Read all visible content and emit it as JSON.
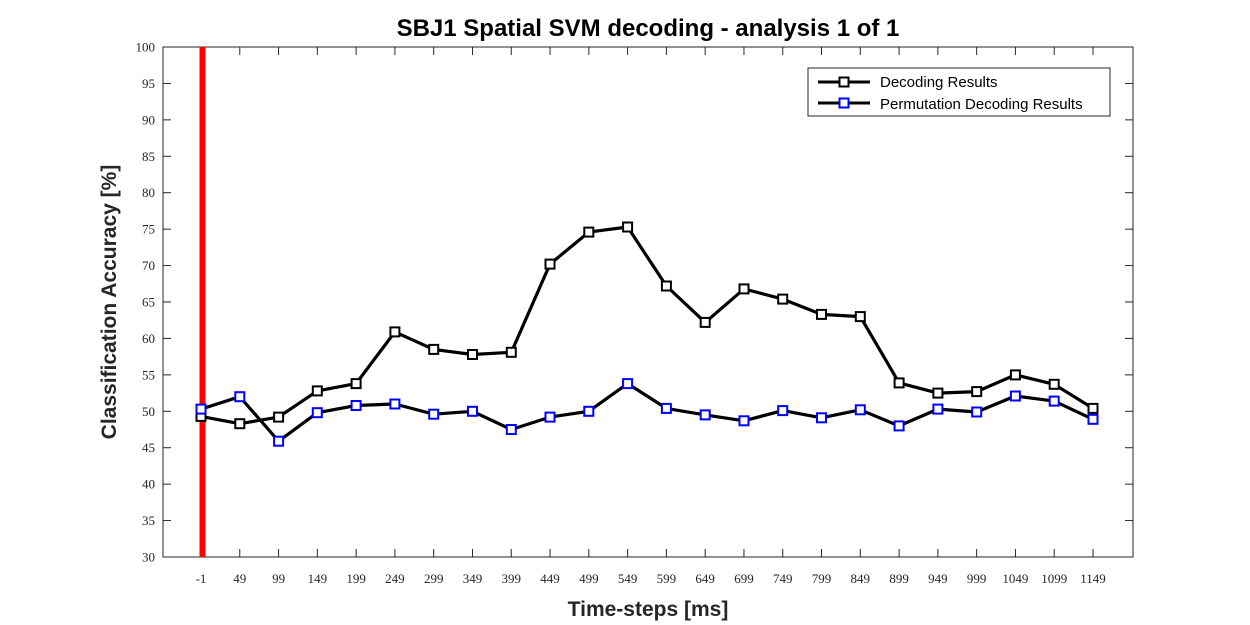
{
  "chart_data": {
    "type": "line",
    "title": "SBJ1 Spatial SVM decoding - analysis 1 of 1",
    "xlabel": "Time-steps [ms]",
    "ylabel": "Classification Accuracy [%]",
    "ylim": [
      30,
      100
    ],
    "yticks": [
      30,
      35,
      40,
      45,
      50,
      55,
      60,
      65,
      70,
      75,
      80,
      85,
      90,
      95,
      100
    ],
    "categories": [
      "-1",
      "49",
      "99",
      "149",
      "199",
      "249",
      "299",
      "349",
      "399",
      "449",
      "499",
      "549",
      "599",
      "649",
      "699",
      "749",
      "799",
      "849",
      "899",
      "949",
      "999",
      "1049",
      "1099",
      "1149"
    ],
    "grid": false,
    "legend_position": "top-right",
    "marker_line": {
      "at_category": "-1",
      "color": "#ff0000"
    },
    "series": [
      {
        "name": "Decoding Results",
        "color": "#000000",
        "marker_color": "#000000",
        "marker": "square",
        "values": [
          49.3,
          48.3,
          49.2,
          52.8,
          53.8,
          60.9,
          58.5,
          57.8,
          58.1,
          70.2,
          74.6,
          75.3,
          67.2,
          62.2,
          66.8,
          65.4,
          63.3,
          63.0,
          53.9,
          52.5,
          52.7,
          55.0,
          53.7,
          50.4
        ]
      },
      {
        "name": "Permutation Decoding Results",
        "color": "#000000",
        "marker_color": "#0000ff",
        "marker": "square",
        "values": [
          50.3,
          52.0,
          45.9,
          49.8,
          50.8,
          51.0,
          49.6,
          50.0,
          47.5,
          49.2,
          50.0,
          53.8,
          50.4,
          49.5,
          48.7,
          50.1,
          49.1,
          50.2,
          48.0,
          50.3,
          49.9,
          52.1,
          51.4,
          48.9
        ]
      }
    ]
  }
}
